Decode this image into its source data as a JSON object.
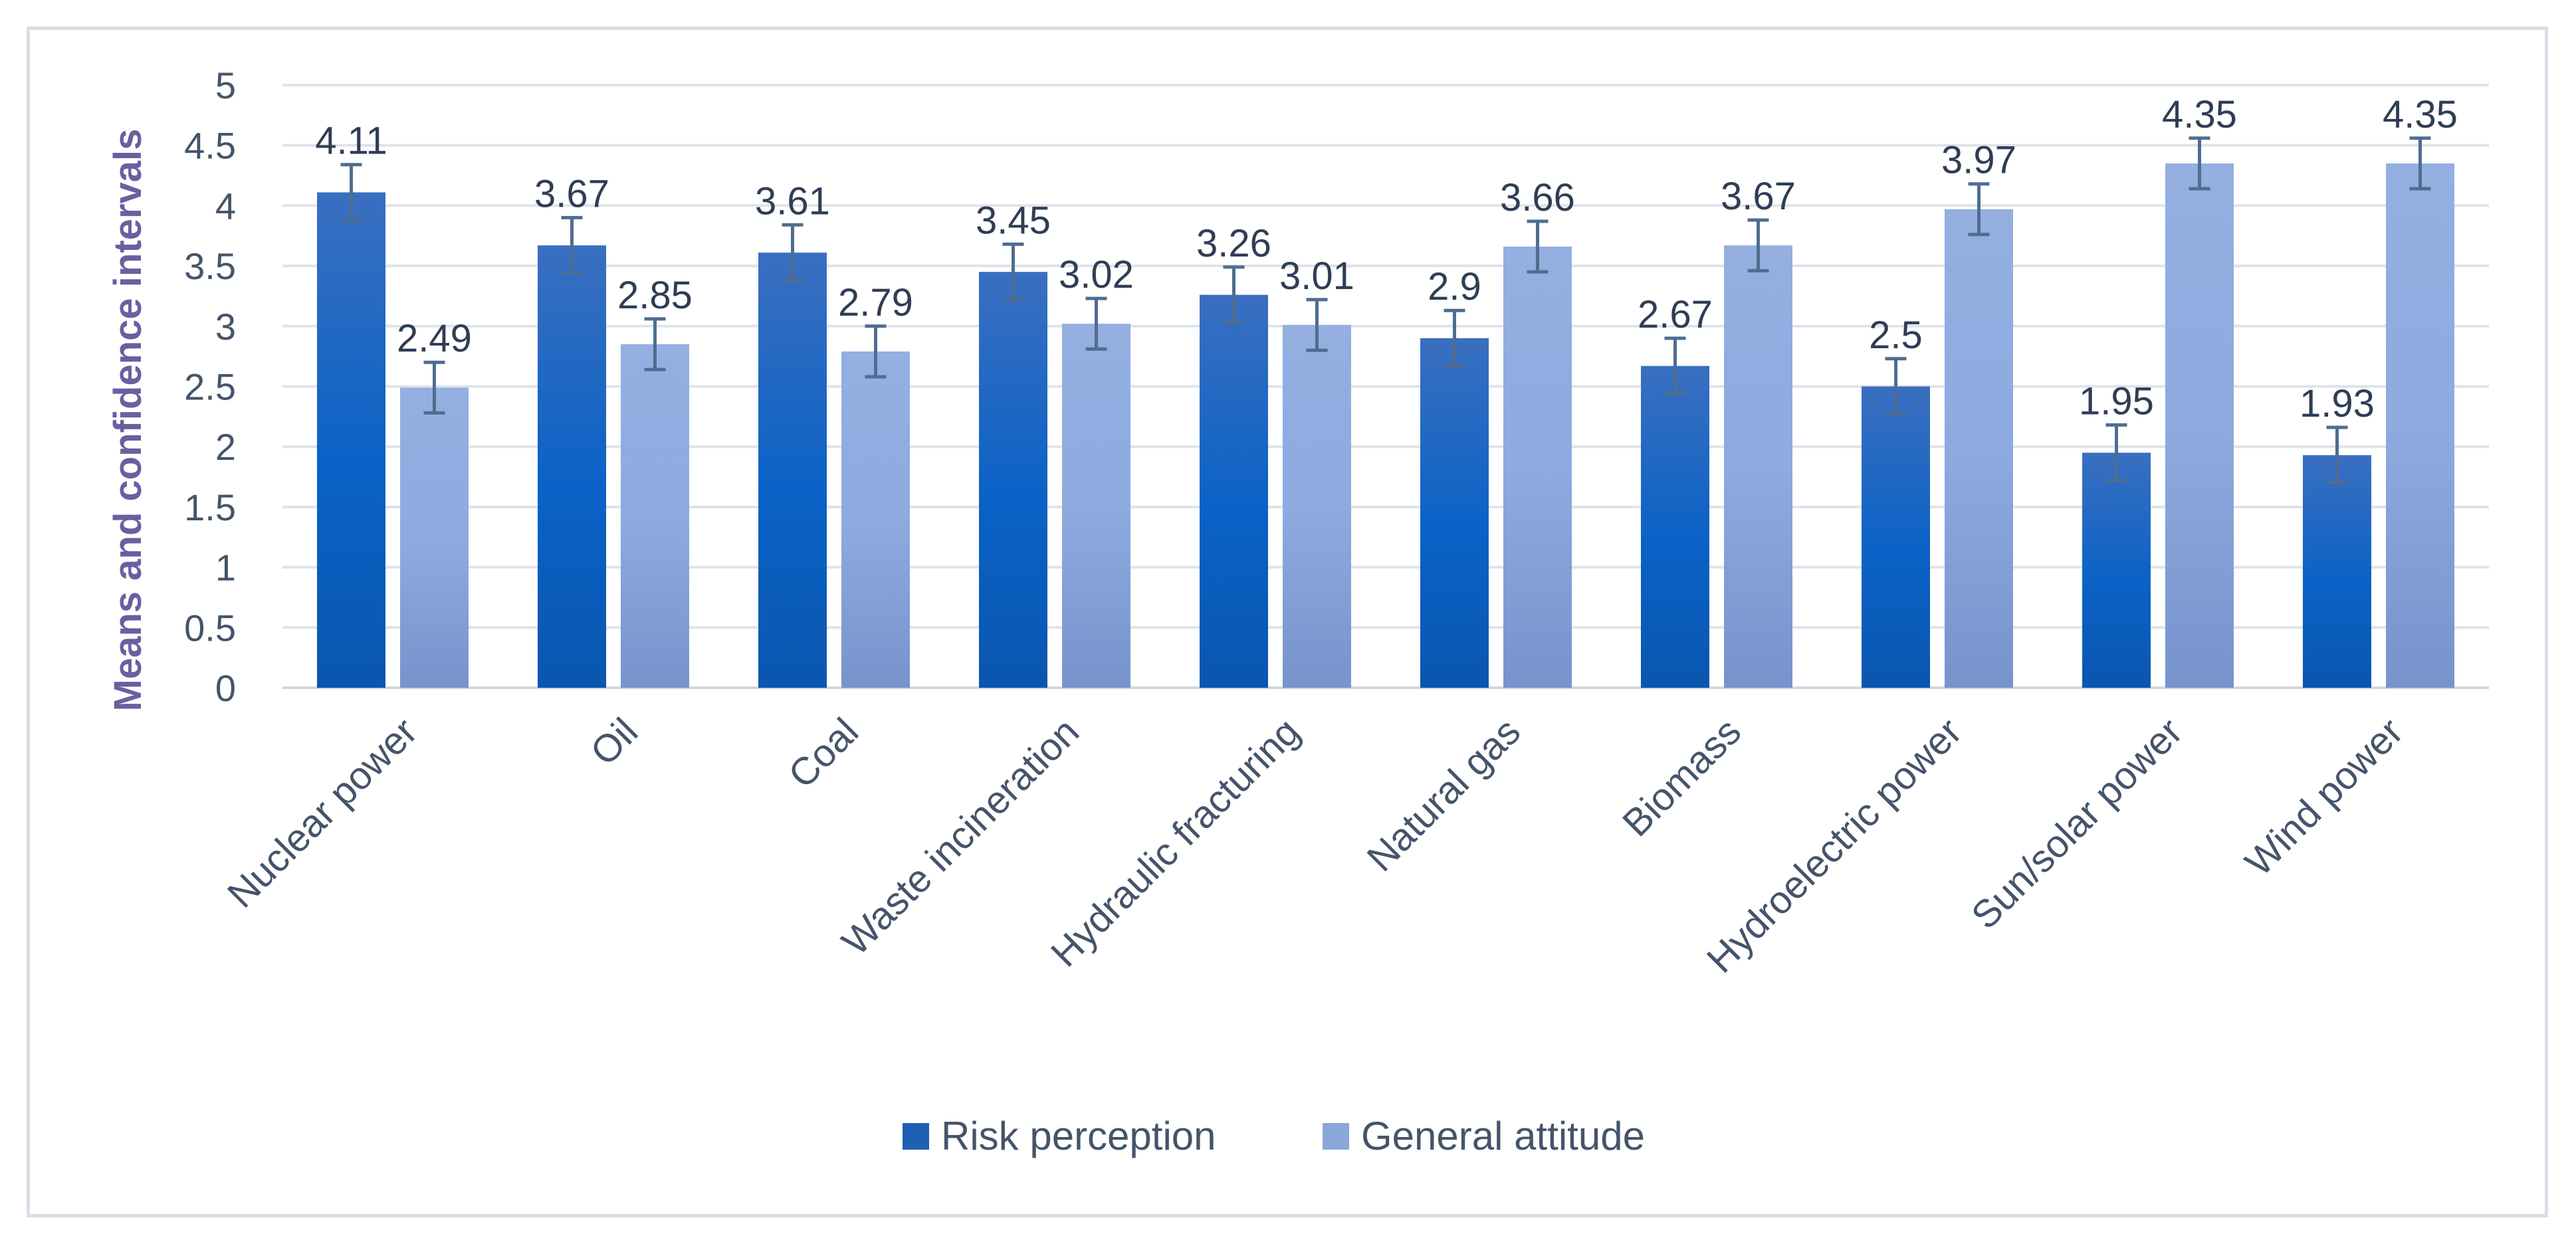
{
  "chart_data": {
    "type": "bar",
    "title": "",
    "xlabel": "",
    "ylabel": "Means and confidence intervals",
    "ylim": [
      0,
      5
    ],
    "yticks": [
      0,
      0.5,
      1,
      1.5,
      2,
      2.5,
      3,
      3.5,
      4,
      4.5,
      5
    ],
    "ytick_labels": [
      "0",
      "0.5",
      "1",
      "1.5",
      "2",
      "2.5",
      "3",
      "3.5",
      "4",
      "4.5",
      "5"
    ],
    "grid": true,
    "legend_position": "bottom",
    "categories": [
      "Nuclear power",
      "Oil",
      "Coal",
      "Waste incineration",
      "Hydraulic fracturing",
      "Natural gas",
      "Biomass",
      "Hydroelectric power",
      "Sun/solar power",
      "Wind power"
    ],
    "series": [
      {
        "name": "Risk perception",
        "color": "#1f5fb4",
        "values": [
          4.11,
          3.67,
          3.61,
          3.45,
          3.26,
          2.9,
          2.67,
          2.5,
          1.95,
          1.93
        ],
        "labels": [
          "4.11",
          "3.67",
          "3.61",
          "3.45",
          "3.26",
          "2.9",
          "2.67",
          "2.5",
          "1.95",
          "1.93"
        ],
        "ci_half_width": [
          0.23,
          0.23,
          0.23,
          0.23,
          0.23,
          0.23,
          0.23,
          0.23,
          0.23,
          0.23
        ]
      },
      {
        "name": "General attitude",
        "color": "#8ba7d9",
        "values": [
          2.49,
          2.85,
          2.79,
          3.02,
          3.01,
          3.66,
          3.67,
          3.97,
          4.35,
          4.35
        ],
        "labels": [
          "2.49",
          "2.85",
          "2.79",
          "3.02",
          "3.01",
          "3.66",
          "3.67",
          "3.97",
          "4.35",
          "4.35"
        ],
        "ci_half_width": [
          0.21,
          0.21,
          0.21,
          0.21,
          0.21,
          0.21,
          0.21,
          0.21,
          0.21,
          0.21
        ]
      }
    ]
  }
}
